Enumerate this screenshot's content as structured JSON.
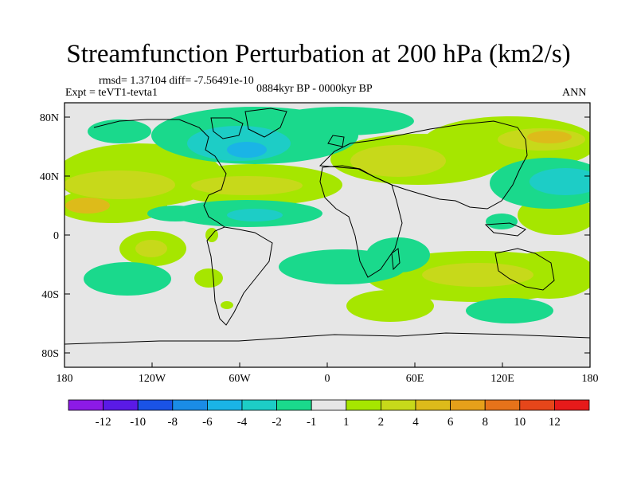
{
  "title": "Streamfunction Perturbation at 200 hPa (km2/s)",
  "rmsd_text": "rmsd= 1.37104 diff= -7.56491e-10",
  "expt_text": "Expt = teVT1-tevta1",
  "period_text": "0884kyr BP - 0000kyr BP",
  "season": "ANN",
  "map": {
    "projection": "cylindrical equidistant",
    "lat_labels": [
      "80N",
      "40N",
      "0",
      "40S",
      "80S"
    ],
    "lon_labels": [
      "180",
      "120W",
      "60W",
      "0",
      "60E",
      "120E",
      "180"
    ]
  },
  "colors": {
    "pos_1": "#a6e600",
    "pos_2": "#c7d91a",
    "pos_4": "#ddbb1a",
    "neg_1": "#1ad98c",
    "neg_2": "#1dcdc6",
    "neg_4": "#1ab4e6",
    "land_bg": "#e6e6e6"
  },
  "colorbar": {
    "labels": [
      "-12",
      "-10",
      "-8",
      "-6",
      "-4",
      "-2",
      "-1",
      "1",
      "2",
      "4",
      "6",
      "8",
      "10",
      "12"
    ],
    "colors": [
      "#8c1ae6",
      "#5a1ae6",
      "#1a53e6",
      "#1a8ce6",
      "#1ab4e6",
      "#1dcdc6",
      "#1ad98c",
      "#e6e6e6",
      "#a6e600",
      "#c7d91a",
      "#ddbb1a",
      "#e6a01a",
      "#e6731a",
      "#e6461a",
      "#e61a1a"
    ]
  }
}
